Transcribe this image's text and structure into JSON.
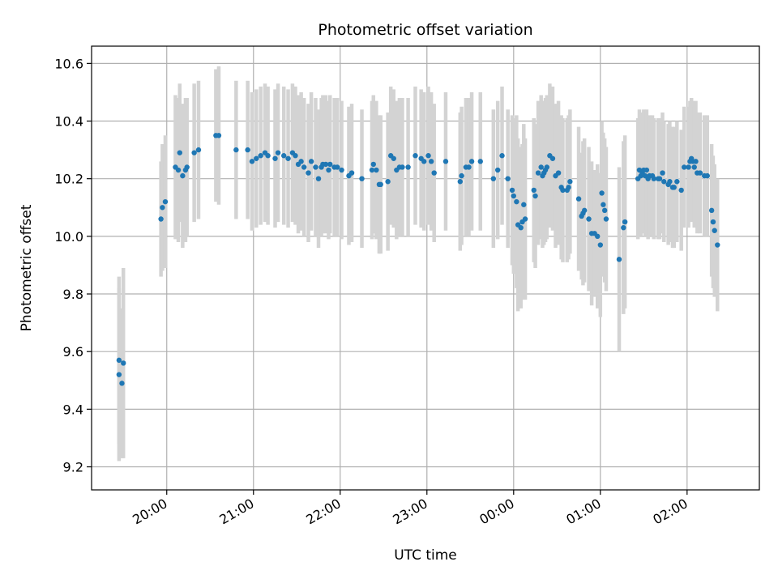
{
  "chart_data": {
    "type": "scatter",
    "title": "Photometric offset variation",
    "xlabel": "UTC time",
    "ylabel": "Photometric offset",
    "x_unit": "UTC time",
    "xlim": [
      "19:08",
      "02:50"
    ],
    "ylim": [
      9.12,
      10.66
    ],
    "grid": true,
    "legend": "none",
    "x_ticks": [
      {
        "value": "20:00",
        "label": "20:00"
      },
      {
        "value": "21:00",
        "label": "21:00"
      },
      {
        "value": "22:00",
        "label": "22:00"
      },
      {
        "value": "23:00",
        "label": "23:00"
      },
      {
        "value": "00:00",
        "label": "00:00"
      },
      {
        "value": "01:00",
        "label": "01:00"
      },
      {
        "value": "02:00",
        "label": "02:00"
      }
    ],
    "y_ticks": [
      {
        "value": 9.2,
        "label": "9.2"
      },
      {
        "value": 9.4,
        "label": "9.4"
      },
      {
        "value": 9.6,
        "label": "9.6"
      },
      {
        "value": 9.8,
        "label": "9.8"
      },
      {
        "value": 10.0,
        "label": "10.0"
      },
      {
        "value": 10.2,
        "label": "10.2"
      },
      {
        "value": 10.4,
        "label": "10.4"
      },
      {
        "value": 10.6,
        "label": "10.6"
      }
    ],
    "colors": {
      "points": "#1f77b4",
      "error_bars": "#d3d3d3",
      "grid": "#b0b0b0"
    },
    "series": [
      {
        "points": [
          [
            "19:27",
            9.57,
            0.29
          ],
          [
            "19:27",
            9.52,
            0.3
          ],
          [
            "19:29",
            9.49,
            0.26
          ],
          [
            "19:30",
            9.56,
            0.33
          ],
          [
            "19:56",
            10.06,
            0.2
          ],
          [
            "19:57",
            10.1,
            0.22
          ],
          [
            "19:59",
            10.12,
            0.23
          ],
          [
            "20:06",
            10.24,
            0.25
          ],
          [
            "20:08",
            10.23,
            0.25
          ],
          [
            "20:09",
            10.29,
            0.24
          ],
          [
            "20:11",
            10.21,
            0.25
          ],
          [
            "20:13",
            10.23,
            0.25
          ],
          [
            "20:14",
            10.24,
            0.24
          ],
          [
            "20:19",
            10.29,
            0.24
          ],
          [
            "20:22",
            10.3,
            0.24
          ],
          [
            "20:34",
            10.35,
            0.23
          ],
          [
            "20:36",
            10.35,
            0.24
          ],
          [
            "20:48",
            10.3,
            0.24
          ],
          [
            "20:56",
            10.3,
            0.24
          ],
          [
            "20:59",
            10.26,
            0.24
          ],
          [
            "21:02",
            10.27,
            0.24
          ],
          [
            "21:05",
            10.28,
            0.24
          ],
          [
            "21:08",
            10.29,
            0.24
          ],
          [
            "21:10",
            10.28,
            0.24
          ],
          [
            "21:15",
            10.27,
            0.24
          ],
          [
            "21:17",
            10.29,
            0.24
          ],
          [
            "21:21",
            10.28,
            0.24
          ],
          [
            "21:24",
            10.27,
            0.24
          ],
          [
            "21:27",
            10.29,
            0.24
          ],
          [
            "21:29",
            10.28,
            0.24
          ],
          [
            "21:31",
            10.25,
            0.24
          ],
          [
            "21:33",
            10.26,
            0.24
          ],
          [
            "21:35",
            10.24,
            0.24
          ],
          [
            "21:38",
            10.22,
            0.24
          ],
          [
            "21:40",
            10.26,
            0.24
          ],
          [
            "21:43",
            10.24,
            0.24
          ],
          [
            "21:45",
            10.2,
            0.24
          ],
          [
            "21:47",
            10.24,
            0.24
          ],
          [
            "21:48",
            10.25,
            0.24
          ],
          [
            "21:50",
            10.25,
            0.24
          ],
          [
            "21:52",
            10.23,
            0.24
          ],
          [
            "21:53",
            10.25,
            0.24
          ],
          [
            "21:56",
            10.24,
            0.24
          ],
          [
            "21:58",
            10.24,
            0.24
          ],
          [
            "22:01",
            10.23,
            0.24
          ],
          [
            "22:06",
            10.21,
            0.24
          ],
          [
            "22:08",
            10.22,
            0.24
          ],
          [
            "22:15",
            10.2,
            0.24
          ],
          [
            "22:22",
            10.23,
            0.24
          ],
          [
            "22:23",
            10.25,
            0.24
          ],
          [
            "22:25",
            10.23,
            0.24
          ],
          [
            "22:27",
            10.18,
            0.24
          ],
          [
            "22:28",
            10.18,
            0.24
          ],
          [
            "22:33",
            10.19,
            0.24
          ],
          [
            "22:35",
            10.28,
            0.24
          ],
          [
            "22:37",
            10.27,
            0.24
          ],
          [
            "22:39",
            10.23,
            0.24
          ],
          [
            "22:41",
            10.24,
            0.24
          ],
          [
            "22:43",
            10.24,
            0.24
          ],
          [
            "22:47",
            10.24,
            0.24
          ],
          [
            "22:52",
            10.28,
            0.24
          ],
          [
            "22:56",
            10.27,
            0.24
          ],
          [
            "22:58",
            10.26,
            0.24
          ],
          [
            "23:01",
            10.28,
            0.24
          ],
          [
            "23:03",
            10.26,
            0.24
          ],
          [
            "23:05",
            10.22,
            0.24
          ],
          [
            "23:13",
            10.26,
            0.24
          ],
          [
            "23:23",
            10.19,
            0.24
          ],
          [
            "23:24",
            10.21,
            0.24
          ],
          [
            "23:27",
            10.24,
            0.24
          ],
          [
            "23:29",
            10.24,
            0.24
          ],
          [
            "23:31",
            10.26,
            0.24
          ],
          [
            "23:37",
            10.26,
            0.24
          ],
          [
            "23:46",
            10.2,
            0.24
          ],
          [
            "23:49",
            10.23,
            0.24
          ],
          [
            "23:52",
            10.28,
            0.24
          ],
          [
            "23:56",
            10.2,
            0.24
          ],
          [
            "23:59",
            10.16,
            0.26
          ],
          [
            "00:00",
            10.14,
            0.27
          ],
          [
            "00:02",
            10.12,
            0.3
          ],
          [
            "00:03",
            10.04,
            0.3
          ],
          [
            "00:05",
            10.03,
            0.28
          ],
          [
            "00:06",
            10.05,
            0.27
          ],
          [
            "00:07",
            10.11,
            0.28
          ],
          [
            "00:08",
            10.06,
            0.28
          ],
          [
            "00:14",
            10.16,
            0.25
          ],
          [
            "00:15",
            10.14,
            0.25
          ],
          [
            "00:17",
            10.22,
            0.25
          ],
          [
            "00:19",
            10.24,
            0.25
          ],
          [
            "00:20",
            10.21,
            0.25
          ],
          [
            "00:21",
            10.22,
            0.25
          ],
          [
            "00:22",
            10.23,
            0.25
          ],
          [
            "00:23",
            10.24,
            0.25
          ],
          [
            "00:25",
            10.28,
            0.25
          ],
          [
            "00:27",
            10.27,
            0.25
          ],
          [
            "00:29",
            10.21,
            0.25
          ],
          [
            "00:31",
            10.22,
            0.25
          ],
          [
            "00:33",
            10.17,
            0.25
          ],
          [
            "00:34",
            10.16,
            0.25
          ],
          [
            "00:37",
            10.16,
            0.25
          ],
          [
            "00:38",
            10.17,
            0.25
          ],
          [
            "00:39",
            10.19,
            0.25
          ],
          [
            "00:45",
            10.13,
            0.25
          ],
          [
            "00:47",
            10.07,
            0.22
          ],
          [
            "00:48",
            10.08,
            0.25
          ],
          [
            "00:49",
            10.09,
            0.25
          ],
          [
            "00:52",
            10.06,
            0.25
          ],
          [
            "00:54",
            10.01,
            0.25
          ],
          [
            "00:56",
            10.01,
            0.22
          ],
          [
            "00:58",
            10.0,
            0.25
          ],
          [
            "01:00",
            9.97,
            0.25
          ],
          [
            "01:01",
            10.15,
            0.25
          ],
          [
            "01:02",
            10.11,
            0.25
          ],
          [
            "01:03",
            10.09,
            0.25
          ],
          [
            "01:04",
            10.06,
            0.25
          ],
          [
            "01:13",
            9.92,
            0.32
          ],
          [
            "01:16",
            10.03,
            0.3
          ],
          [
            "01:17",
            10.05,
            0.3
          ],
          [
            "01:26",
            10.2,
            0.21
          ],
          [
            "01:27",
            10.23,
            0.21
          ],
          [
            "01:28",
            10.21,
            0.21
          ],
          [
            "01:29",
            10.22,
            0.21
          ],
          [
            "01:30",
            10.23,
            0.21
          ],
          [
            "01:31",
            10.21,
            0.21
          ],
          [
            "01:32",
            10.23,
            0.21
          ],
          [
            "01:33",
            10.2,
            0.21
          ],
          [
            "01:34",
            10.21,
            0.21
          ],
          [
            "01:36",
            10.21,
            0.21
          ],
          [
            "01:37",
            10.2,
            0.21
          ],
          [
            "01:40",
            10.2,
            0.21
          ],
          [
            "01:41",
            10.2,
            0.21
          ],
          [
            "01:43",
            10.22,
            0.21
          ],
          [
            "01:44",
            10.19,
            0.21
          ],
          [
            "01:47",
            10.18,
            0.21
          ],
          [
            "01:48",
            10.19,
            0.21
          ],
          [
            "01:50",
            10.17,
            0.21
          ],
          [
            "01:51",
            10.17,
            0.21
          ],
          [
            "01:53",
            10.19,
            0.21
          ],
          [
            "01:56",
            10.16,
            0.21
          ],
          [
            "01:58",
            10.24,
            0.21
          ],
          [
            "02:01",
            10.24,
            0.21
          ],
          [
            "02:02",
            10.26,
            0.21
          ],
          [
            "02:03",
            10.27,
            0.21
          ],
          [
            "02:04",
            10.26,
            0.21
          ],
          [
            "02:05",
            10.24,
            0.21
          ],
          [
            "02:06",
            10.26,
            0.21
          ],
          [
            "02:07",
            10.22,
            0.21
          ],
          [
            "02:09",
            10.22,
            0.21
          ],
          [
            "02:12",
            10.21,
            0.21
          ],
          [
            "02:14",
            10.21,
            0.21
          ],
          [
            "02:17",
            10.09,
            0.23
          ],
          [
            "02:18",
            10.05,
            0.23
          ],
          [
            "02:19",
            10.02,
            0.23
          ],
          [
            "02:21",
            9.97,
            0.23
          ]
        ]
      }
    ]
  }
}
